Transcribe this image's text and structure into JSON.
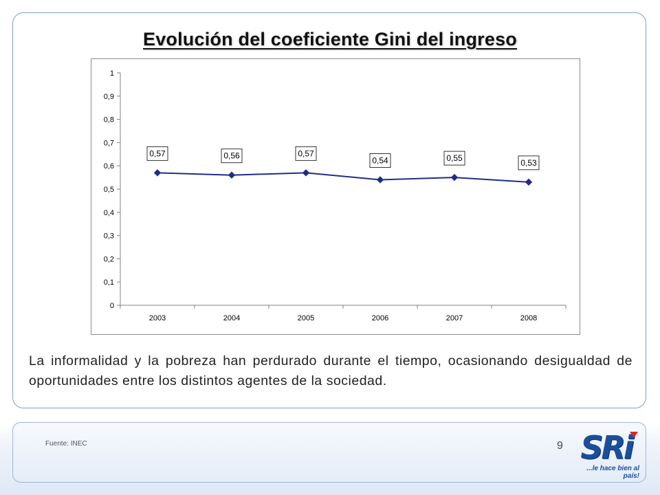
{
  "slide": {
    "title": "Evolución del coeficiente Gini del ingreso",
    "body": "La informalidad y la pobreza han perdurado durante el tiempo, ocasionando desigualdad de oportunidades entre los distintos agentes de la sociedad.",
    "source": "Fuente: INEC",
    "page_number": "9"
  },
  "logo": {
    "name": "SRi",
    "tagline": "...le hace bien al país!"
  },
  "chart_data": {
    "type": "line",
    "categories": [
      "2003",
      "2004",
      "2005",
      "2006",
      "2007",
      "2008"
    ],
    "series": [
      {
        "values": [
          0.57,
          0.56,
          0.57,
          0.54,
          0.55,
          0.53
        ],
        "color": "#1f2d86"
      }
    ],
    "data_labels": [
      "0,57",
      "0,56",
      "0,57",
      "0,54",
      "0,55",
      "0,53"
    ],
    "y_ticks": [
      "0",
      "0,1",
      "0,2",
      "0,3",
      "0,4",
      "0,5",
      "0,6",
      "0,7",
      "0,8",
      "0,9",
      "1"
    ],
    "ylim": [
      0,
      1
    ],
    "grid": false,
    "legend": "none",
    "title": "",
    "xlabel": "",
    "ylabel": ""
  }
}
